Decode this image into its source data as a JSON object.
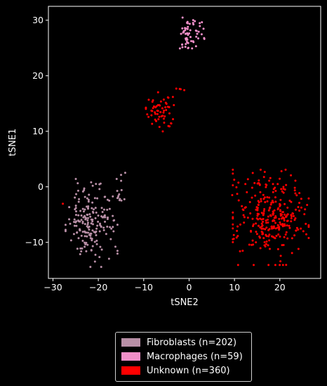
{
  "chart_data": {
    "type": "scatter",
    "xlabel": "tSNE2",
    "ylabel": "tSNE1",
    "xlim": [
      -31,
      29
    ],
    "ylim": [
      -16.5,
      32.5
    ],
    "xticks": [
      -30,
      -20,
      -10,
      0,
      10,
      20
    ],
    "yticks": [
      -10,
      0,
      10,
      20,
      30
    ],
    "grid": false,
    "legend_position": "bottom-center",
    "series": [
      {
        "name": "Fibroblasts (n=202)",
        "color": "#b88fa6",
        "clusters": [
          {
            "center": [
              -21.5,
              -6.5
            ],
            "spread": [
              2.6,
              3.6
            ],
            "n": 190
          },
          {
            "center": [
              -15.0,
              -1.0
            ],
            "spread": [
              0.5,
              1.6
            ],
            "n": 12
          }
        ]
      },
      {
        "name": "Macrophages (n=59)",
        "color": "#f08fc8",
        "clusters": [
          {
            "center": [
              0.5,
              28.0
            ],
            "spread": [
              1.3,
              1.4
            ],
            "n": 52
          },
          {
            "center": [
              -1.0,
              25.5
            ],
            "spread": [
              0.8,
              0.5
            ],
            "n": 7
          }
        ]
      },
      {
        "name": "Unknown (n=360)",
        "color": "#ff0000",
        "clusters": [
          {
            "center": [
              18.0,
              -5.5
            ],
            "spread": [
              3.8,
              3.9
            ],
            "n": 296
          },
          {
            "center": [
              -6.0,
              13.5
            ],
            "spread": [
              1.6,
              1.6
            ],
            "n": 58
          },
          {
            "center": [
              -1.5,
              17.6
            ],
            "spread": [
              0.6,
              0.2
            ],
            "n": 4
          },
          {
            "center": [
              -27.8,
              -3.0
            ],
            "spread": [
              0.1,
              0.1
            ],
            "n": 1
          },
          {
            "center": [
              9.5,
              -1.5
            ],
            "spread": [
              0.1,
              0.1
            ],
            "n": 1
          }
        ]
      }
    ]
  }
}
